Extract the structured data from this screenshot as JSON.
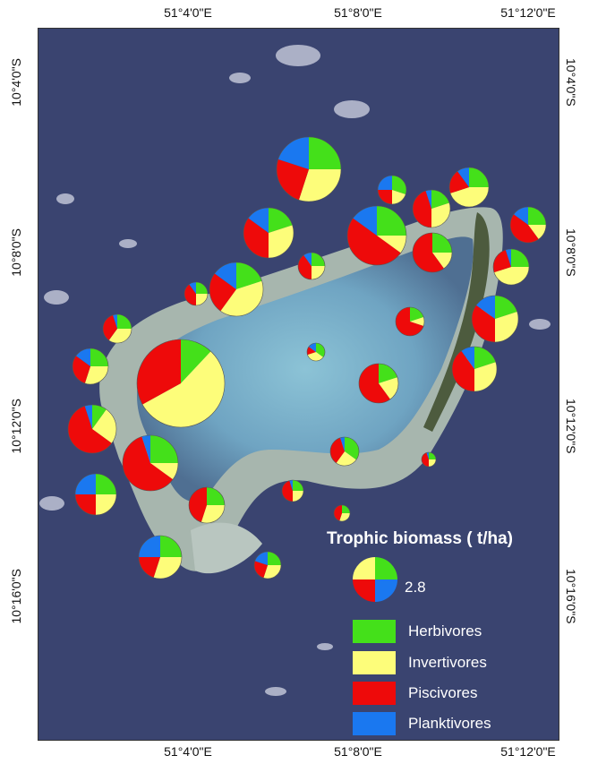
{
  "map": {
    "longitude_ticks": [
      "51°4'0\"E",
      "51°8'0\"E",
      "51°12'0\"E"
    ],
    "latitude_ticks": [
      "10°4'0\"S",
      "10°8'0\"S",
      "10°12'0\"S",
      "10°16'0\"S"
    ]
  },
  "legend": {
    "title": "Trophic biomass ( t/ha)",
    "size_reference": "2.8",
    "categories": [
      {
        "label": "Herbivores",
        "color": "#44e01a"
      },
      {
        "label": "Invertivores",
        "color": "#fdfd7a"
      },
      {
        "label": "Piscivores",
        "color": "#ee0a0a"
      },
      {
        "label": "Planktivores",
        "color": "#1a78f0"
      }
    ]
  },
  "colors": {
    "ocean": "#3a4470",
    "reef": "#9eb0a8",
    "lagoon": "#7fb0c8",
    "island": "#4a5a3a"
  }
}
